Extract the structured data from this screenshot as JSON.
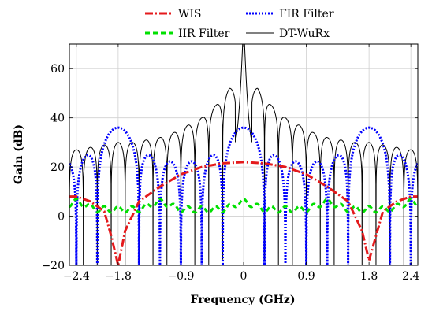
{
  "chart_data": {
    "type": "line",
    "title": "",
    "xlabel": "Frequency (GHz)",
    "ylabel": "Gain (dB)",
    "xlim": [
      -2.5,
      2.5
    ],
    "ylim": [
      -20,
      70
    ],
    "xticks": [
      -2.4,
      -1.8,
      -0.9,
      0,
      0.9,
      1.8,
      2.4
    ],
    "xtick_labels": [
      "−2.4",
      "−1.8",
      "−0.9",
      "0",
      "0.9",
      "1.8",
      "2.4"
    ],
    "yticks": [
      -20,
      0,
      20,
      40,
      60
    ],
    "ytick_labels": [
      "−20",
      "0",
      "20",
      "40",
      "60"
    ],
    "grid": true,
    "legend_position": "top (outside plot)",
    "series": [
      {
        "name": "WIS",
        "color": "#e41a1c",
        "style": "dash-dot",
        "x": [
          -2.5,
          -2.4,
          -2.2,
          -2.0,
          -1.9,
          -1.8,
          -1.7,
          -1.5,
          -1.2,
          -0.9,
          -0.6,
          -0.3,
          0,
          0.3,
          0.6,
          0.9,
          1.2,
          1.5,
          1.7,
          1.8,
          1.9,
          2.0,
          2.2,
          2.4,
          2.5
        ],
        "y": [
          8,
          8,
          6,
          2,
          -8,
          -20,
          -6,
          6,
          12,
          17,
          20,
          21.5,
          22,
          21.5,
          20,
          17,
          12,
          6,
          -6,
          -18,
          -8,
          2,
          6,
          8,
          8
        ]
      },
      {
        "name": "FIR Filter",
        "color": "#0000ff",
        "style": "dotted",
        "main_lobe_peaks": [
          [
            -1.8,
            36
          ],
          [
            0,
            36
          ],
          [
            1.8,
            36
          ]
        ],
        "side_lobe_peak_approx": 23,
        "nulls_per_gap": 5,
        "bottom": -20
      },
      {
        "name": "IIR Filter",
        "color": "#00e000",
        "style": "dashed",
        "base": 0,
        "ripple_peaks": [
          [
            -2.4,
            7
          ],
          [
            0,
            7
          ],
          [
            2.4,
            7
          ]
        ],
        "ripple_amplitude_approx": 5
      },
      {
        "name": "DT-WuRx",
        "color": "#000000",
        "style": "solid",
        "center_peak": [
          0,
          65
        ],
        "side_lobe_peaks": [
          [
            -2.4,
            27
          ],
          [
            -2.2,
            28
          ],
          [
            -2.0,
            29
          ],
          [
            -1.8,
            30
          ],
          [
            -1.6,
            30
          ],
          [
            -1.4,
            31
          ],
          [
            -1.2,
            32
          ],
          [
            -1.0,
            34
          ],
          [
            -0.8,
            37
          ],
          [
            -0.6,
            40
          ],
          [
            -0.4,
            45
          ],
          [
            -0.2,
            52
          ],
          [
            0.2,
            52
          ],
          [
            0.4,
            45
          ],
          [
            0.6,
            40
          ],
          [
            0.8,
            37
          ],
          [
            1.0,
            34
          ],
          [
            1.2,
            32
          ],
          [
            1.4,
            31
          ],
          [
            1.6,
            30
          ],
          [
            1.8,
            30
          ],
          [
            2.0,
            29
          ],
          [
            2.2,
            28
          ],
          [
            2.4,
            27
          ]
        ],
        "bottom": -20
      }
    ]
  },
  "legend": [
    {
      "label": "WIS",
      "color": "#e41a1c",
      "dash": "10 3 2 3",
      "width": 3
    },
    {
      "label": "FIR Filter",
      "color": "#0000ff",
      "dash": "2 2",
      "width": 3
    },
    {
      "label": "IIR Filter",
      "color": "#00e000",
      "dash": "6 4",
      "width": 3
    },
    {
      "label": "DT-WuRx",
      "color": "#000000",
      "dash": "",
      "width": 1
    }
  ]
}
